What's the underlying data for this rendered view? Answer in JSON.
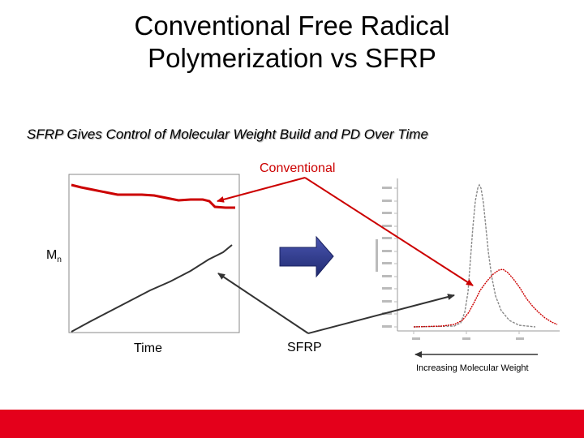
{
  "slide": {
    "title_line1": "Conventional Free Radical",
    "title_line2": "Polymerization vs SFRP",
    "subtitle": "SFRP Gives Control of Molecular Weight Build and PD Over Time"
  },
  "labels": {
    "conventional": "Conventional",
    "mn_main": "M",
    "mn_sub": "n",
    "time": "Time",
    "sfrp": "SFRP",
    "increasing_mw": "Increasing Molecular Weight"
  },
  "colors": {
    "conventional": "#cc0000",
    "sfrp": "#333333",
    "arrow_fill": "#2e3a8c",
    "bottom_bar": "#e4001b"
  }
}
